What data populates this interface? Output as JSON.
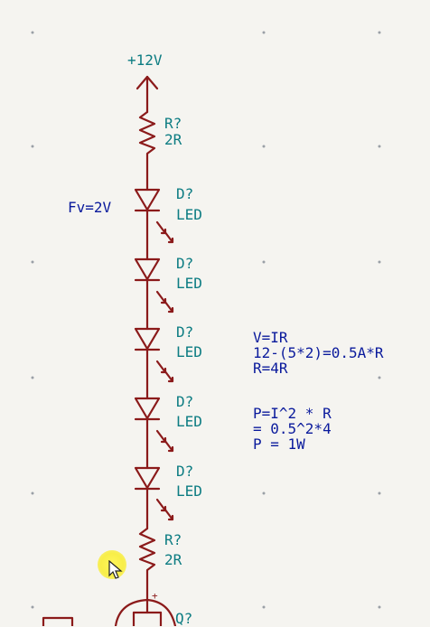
{
  "power": {
    "label": "+12V"
  },
  "resistor_top": {
    "ref": "R?",
    "value": "2R"
  },
  "fv_note": "Fv=2V",
  "leds": [
    {
      "ref": "D?",
      "value": "LED"
    },
    {
      "ref": "D?",
      "value": "LED"
    },
    {
      "ref": "D?",
      "value": "LED"
    },
    {
      "ref": "D?",
      "value": "LED"
    },
    {
      "ref": "D?",
      "value": "LED"
    }
  ],
  "resistor_bottom": {
    "ref": "R?",
    "value": "2R"
  },
  "transistor": {
    "ref": "Q?"
  },
  "calc_resistance": [
    "V=IR",
    "12-(5*2)=0.5A*R",
    "R=4R"
  ],
  "calc_power": [
    "P=I^2 * R",
    "= 0.5^2*4",
    "P = 1W"
  ],
  "colors": {
    "wire": "#8b1a1a",
    "ref_text": "#0c7c82",
    "note_text": "#0a1a9c",
    "background": "#f5f4f0"
  },
  "icons": {
    "cursor": "mouse-pointer-icon",
    "power": "power-arrow-icon"
  }
}
